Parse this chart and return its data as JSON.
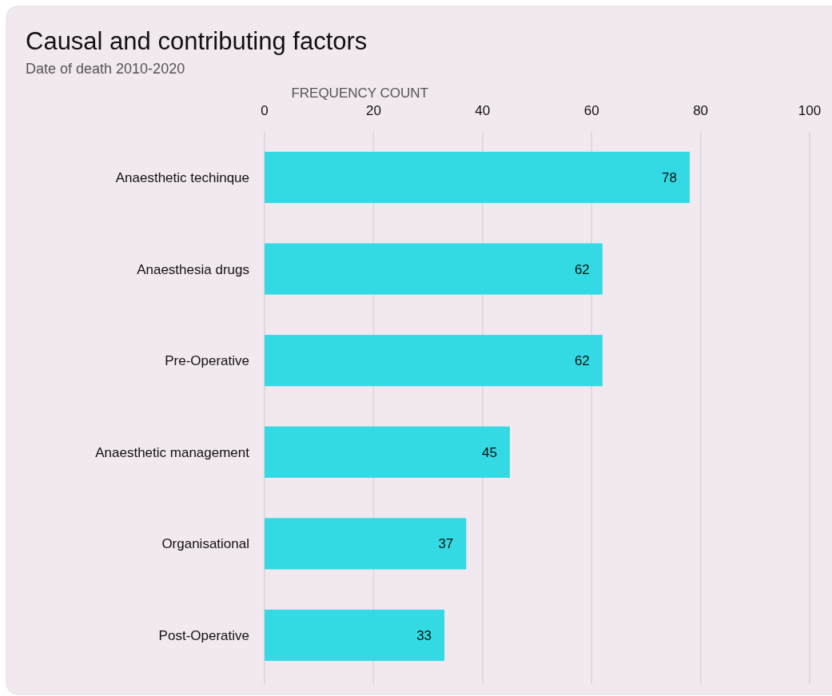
{
  "chart_data": {
    "type": "bar",
    "orientation": "horizontal",
    "title": "Causal and contributing factors",
    "subtitle": "Date of death 2010-2020",
    "xlabel": "FREQUENCY COUNT",
    "categories": [
      "Anaesthetic techinque",
      "Anaesthesia drugs",
      "Pre-Operative",
      "Anaesthetic management",
      "Organisational",
      "Post-Operative"
    ],
    "values": [
      78,
      62,
      62,
      45,
      37,
      33
    ],
    "color": "#33dae3",
    "xlim": [
      0,
      100
    ],
    "xticks": [
      0,
      20,
      40,
      60,
      80,
      100
    ],
    "grid": "x",
    "data_labels": true
  }
}
